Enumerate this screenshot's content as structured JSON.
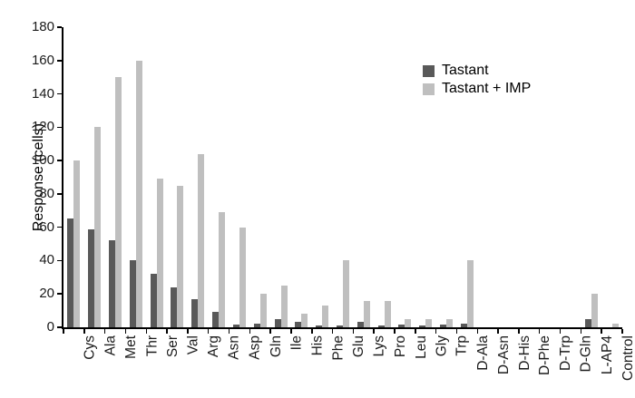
{
  "figure": {
    "background": "#ffffff"
  },
  "chart_data": {
    "type": "bar",
    "title": "",
    "xlabel": "",
    "ylabel": "Response (cells)",
    "ylim": [
      0,
      180
    ],
    "ytick_step": 20,
    "grid": false,
    "legend_position": "upper-right",
    "categories": [
      "Cys",
      "Ala",
      "Met",
      "Thr",
      "Ser",
      "Val",
      "Arg",
      "Asn",
      "Asp",
      "Gln",
      "Ile",
      "His",
      "Phe",
      "Glu",
      "Lys",
      "Pro",
      "Leu",
      "Gly",
      "Trp",
      "D-Ala",
      "D-Asn",
      "D-His",
      "D-Phe",
      "D-Trp",
      "D-Gln",
      "L-AP4",
      "Control"
    ],
    "series": [
      {
        "name": "Tastant",
        "color": "#595959",
        "values": [
          65,
          59,
          52,
          40,
          32,
          24,
          17,
          9,
          1.5,
          2,
          5,
          3,
          1,
          1,
          3,
          1,
          1.5,
          1,
          1.5,
          2,
          0,
          0,
          0,
          0,
          0,
          5,
          0
        ]
      },
      {
        "name": "Tastant + IMP",
        "color": "#bfbfbf",
        "values": [
          100,
          120,
          150,
          160,
          89,
          85,
          104,
          69,
          60,
          20,
          25,
          8,
          13,
          40,
          16,
          16,
          5,
          5,
          5,
          40,
          0,
          0,
          0,
          0,
          0,
          20,
          2
        ]
      }
    ]
  }
}
